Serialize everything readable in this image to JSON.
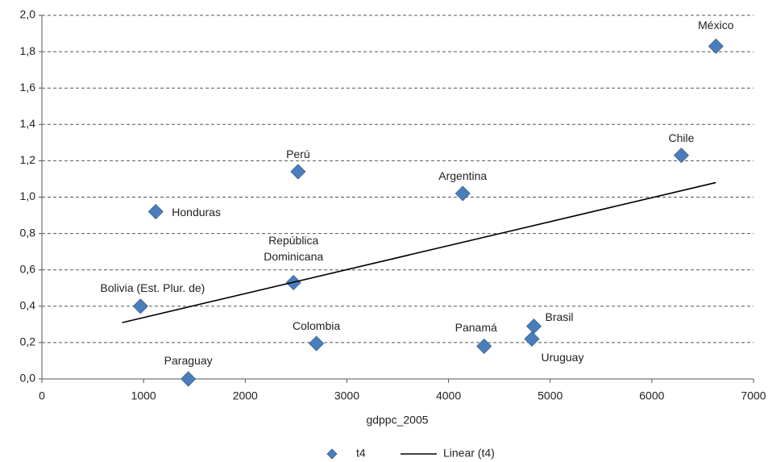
{
  "chart_data": {
    "type": "scatter",
    "x_label": "gdppc_2005",
    "xlim": [
      0,
      7000
    ],
    "ylim": [
      0,
      2
    ],
    "xticks": [
      0,
      1000,
      2000,
      3000,
      4000,
      5000,
      6000,
      7000
    ],
    "yticks": [
      {
        "value": 0,
        "label": "0,0"
      },
      {
        "value": 0.2,
        "label": "0,2"
      },
      {
        "value": 0.4,
        "label": "0,4"
      },
      {
        "value": 0.6,
        "label": "0,6"
      },
      {
        "value": 0.8,
        "label": "0,8"
      },
      {
        "value": 1.0,
        "label": "1,0"
      },
      {
        "value": 1.2,
        "label": "1,2"
      },
      {
        "value": 1.4,
        "label": "1,4"
      },
      {
        "value": 1.6,
        "label": "1,6"
      },
      {
        "value": 1.8,
        "label": "1,8"
      },
      {
        "value": 2.0,
        "label": "2,0"
      }
    ],
    "grid": true,
    "legend": "bottom",
    "series": [
      {
        "name": "t4",
        "color": "#4a7ebb",
        "labels": [
          "México",
          "Chile",
          "Perú",
          "Argentina",
          "Honduras",
          "República Dominicana",
          "Bolivia (Est. Plur. de)",
          "Colombia",
          "Panamá",
          "Brasil",
          "Uruguay",
          "Paraguay"
        ],
        "x": [
          6630,
          6290,
          2520,
          4140,
          1120,
          2475,
          970,
          2700,
          4350,
          4840,
          4820,
          1440
        ],
        "values": [
          1.83,
          1.23,
          1.14,
          1.02,
          0.92,
          0.53,
          0.4,
          0.195,
          0.18,
          0.29,
          0.22,
          0.0
        ]
      },
      {
        "name": "Linear (t4)",
        "type": "line",
        "color": "#000000",
        "x": [
          790,
          6630
        ],
        "values": [
          0.31,
          1.08
        ]
      }
    ]
  }
}
